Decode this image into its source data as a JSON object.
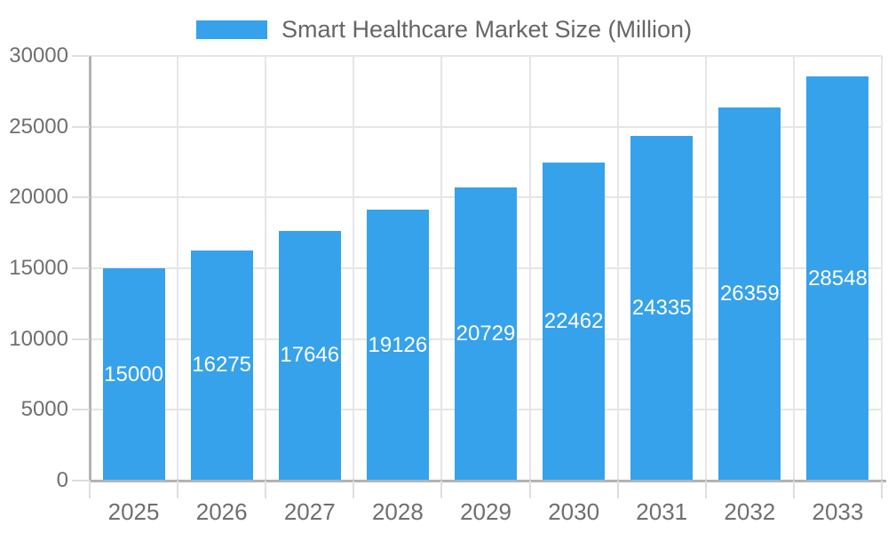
{
  "legend": {
    "label": "Smart Healthcare Market Size (Million)"
  },
  "chart_data": {
    "type": "bar",
    "title": "Smart Healthcare Market Size (Million)",
    "series_name": "Smart Healthcare Market Size (Million)",
    "categories": [
      "2025",
      "2026",
      "2027",
      "2028",
      "2029",
      "2030",
      "2031",
      "2032",
      "2033"
    ],
    "values": [
      15000,
      16275,
      17646,
      19126,
      20729,
      22462,
      24335,
      26359,
      28548
    ],
    "value_labels": [
      "15000",
      "16275",
      "17646",
      "19126",
      "20729",
      "22462",
      "24335",
      "26359",
      "28548"
    ],
    "xlabel": "",
    "ylabel": "",
    "ylim": [
      0,
      30000
    ],
    "ytick_step": 5000,
    "yticks": [
      0,
      5000,
      10000,
      15000,
      20000,
      25000,
      30000
    ],
    "ytick_labels": [
      "0",
      "5000",
      "10000",
      "15000",
      "20000",
      "25000",
      "30000"
    ],
    "grid": true,
    "legend_position": "top-center",
    "value_label_position": "center-of-bar",
    "colors": {
      "bar": "#36a2eb",
      "grid": "#e6e6e6",
      "tick_mark": "#dedede",
      "axis_line": "#b3b3b3",
      "axis_label_text": "#6f6f6f",
      "legend_text": "#666666",
      "value_label_text": "#ffffff",
      "background": "#ffffff"
    }
  }
}
